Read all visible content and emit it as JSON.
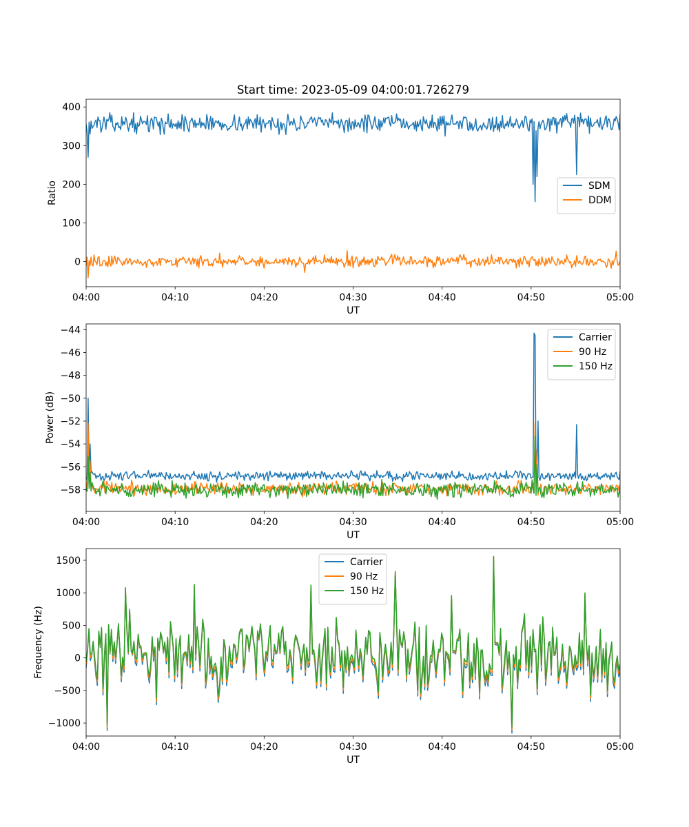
{
  "figure": {
    "title": "Start time: 2023-05-09 04:00:01.726279"
  },
  "chart_data": [
    {
      "type": "line",
      "xlabel": "UT",
      "ylabel": "Ratio",
      "xlim": [
        0,
        60
      ],
      "ylim": [
        -65,
        420
      ],
      "x_tick_values": [
        0,
        10,
        20,
        30,
        40,
        50,
        60
      ],
      "x_tick_labels": [
        "04:00",
        "04:10",
        "04:20",
        "04:30",
        "04:40",
        "04:50",
        "05:00"
      ],
      "y_tick_values": [
        0,
        100,
        200,
        300,
        400
      ],
      "y_tick_labels": [
        "0",
        "100",
        "200",
        "300",
        "400"
      ],
      "legend_position": "center-right",
      "grid": false,
      "series": [
        {
          "name": "SDM",
          "color": "#1f77b4",
          "base": 357,
          "noise": 14,
          "features": [
            [
              0.2,
              270
            ],
            [
              0.5,
              330
            ],
            [
              50.2,
              200
            ],
            [
              50.45,
              155
            ],
            [
              50.7,
              220
            ],
            [
              55.1,
              225
            ]
          ]
        },
        {
          "name": "DDM",
          "color": "#ff7f0e",
          "base": 0,
          "noise": 9,
          "features": [
            [
              0.25,
              -42
            ],
            [
              15.0,
              22
            ],
            [
              29.3,
              28
            ],
            [
              59.6,
              27
            ],
            [
              24.6,
              -28
            ]
          ]
        }
      ]
    },
    {
      "type": "line",
      "xlabel": "UT",
      "ylabel": "Power (dB)",
      "xlim": [
        0,
        60
      ],
      "ylim": [
        -59.9,
        -43.5
      ],
      "x_tick_values": [
        0,
        10,
        20,
        30,
        40,
        50,
        60
      ],
      "x_tick_labels": [
        "04:00",
        "04:10",
        "04:20",
        "04:30",
        "04:40",
        "04:50",
        "05:00"
      ],
      "y_tick_values": [
        -44,
        -46,
        -48,
        -50,
        -52,
        -54,
        -56,
        -58
      ],
      "y_tick_labels": [
        "−44",
        "−46",
        "−48",
        "−50",
        "−52",
        "−54",
        "−56",
        "−58"
      ],
      "legend_position": "top-right",
      "grid": false,
      "series": [
        {
          "name": "Carrier",
          "color": "#1f77b4",
          "base": -56.8,
          "noise": 0.25,
          "features": [
            [
              0.25,
              -50
            ],
            [
              0.5,
              -54
            ],
            [
              50.3,
              -44.3
            ],
            [
              50.5,
              -44.5
            ],
            [
              50.75,
              -52
            ],
            [
              55.1,
              -52.3
            ]
          ]
        },
        {
          "name": "90 Hz",
          "color": "#ff7f0e",
          "base": -57.9,
          "noise": 0.35,
          "features": [
            [
              0.25,
              -52.2
            ],
            [
              0.5,
              -55.5
            ],
            [
              50.45,
              -52.1
            ],
            [
              50.7,
              -54.5
            ]
          ]
        },
        {
          "name": "150 Hz",
          "color": "#2ca02c",
          "base": -58.0,
          "noise": 0.4,
          "features": [
            [
              0.25,
              -55.1
            ],
            [
              0.5,
              -56.5
            ],
            [
              50.45,
              -53.3
            ],
            [
              50.7,
              -55.8
            ]
          ]
        }
      ]
    },
    {
      "type": "line",
      "xlabel": "UT",
      "ylabel": "Frequency (Hz)",
      "xlim": [
        0,
        60
      ],
      "ylim": [
        -1200,
        1680
      ],
      "x_tick_values": [
        0,
        10,
        20,
        30,
        40,
        50,
        60
      ],
      "x_tick_labels": [
        "04:00",
        "04:10",
        "04:20",
        "04:30",
        "04:40",
        "04:50",
        "05:00"
      ],
      "y_tick_values": [
        -1000,
        -500,
        0,
        500,
        1000,
        1500
      ],
      "y_tick_labels": [
        "−1000",
        "−500",
        "0",
        "500",
        "1000",
        "1500"
      ],
      "legend_position": "top-center",
      "grid": false,
      "series": [
        {
          "name": "Carrier",
          "color": "#1f77b4",
          "offset": -95,
          "features": []
        },
        {
          "name": "90 Hz",
          "color": "#ff7f0e",
          "offset": -50,
          "features": []
        },
        {
          "name": "150 Hz",
          "color": "#2ca02c",
          "offset": 0,
          "base": 60,
          "noise": 330,
          "features": [
            [
              2.3,
              -1020
            ],
            [
              4.5,
              1080
            ],
            [
              12.2,
              1130
            ],
            [
              25.2,
              1120
            ],
            [
              34.8,
              1330
            ],
            [
              41.1,
              960
            ],
            [
              45.8,
              1560
            ],
            [
              47.9,
              -1060
            ],
            [
              50.3,
              130
            ],
            [
              50.6,
              130
            ],
            [
              56.1,
              1000
            ]
          ]
        }
      ]
    }
  ]
}
